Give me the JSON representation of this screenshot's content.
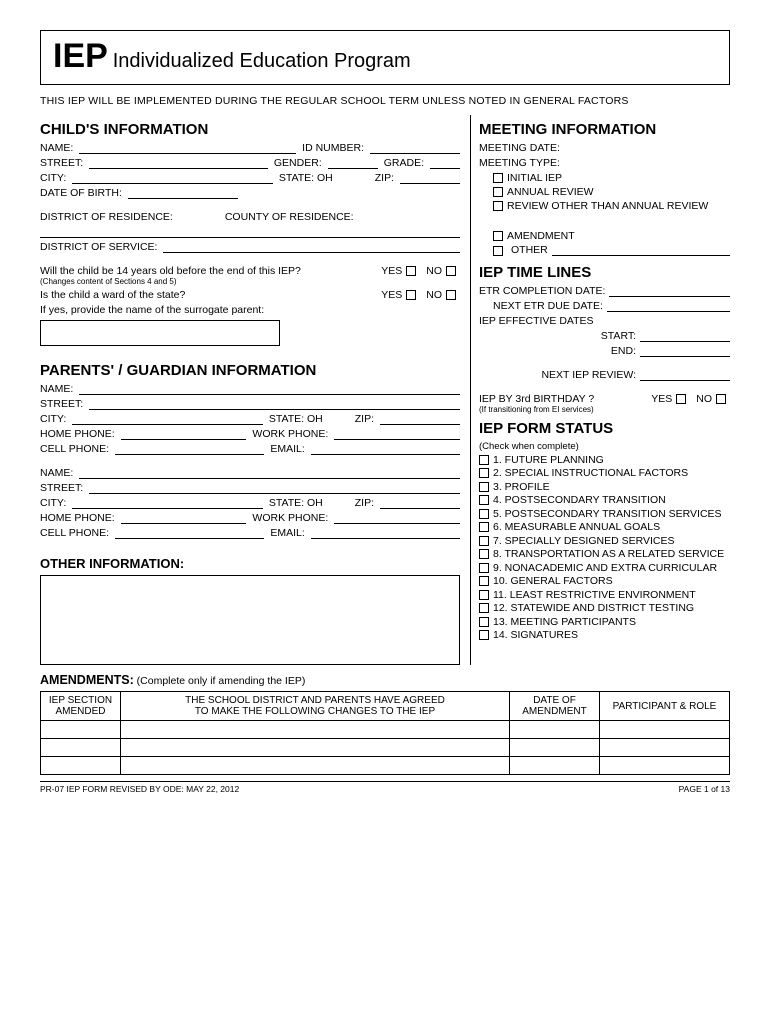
{
  "title": {
    "abbr": "IEP",
    "full": "Individualized Education Program"
  },
  "impl": "THIS IEP WILL BE IMPLEMENTED DURING THE REGULAR SCHOOL TERM UNLESS NOTED IN  GENERAL FACTORS",
  "child": {
    "header": "CHILD'S INFORMATION",
    "name": "NAME:",
    "idnum": "ID NUMBER:",
    "street": "STREET:",
    "gender": "GENDER:",
    "grade": "GRADE:",
    "city": "CITY:",
    "state": "STATE: OH",
    "zip": "ZIP:",
    "dob": "DATE OF BIRTH:",
    "dor": "DISTRICT OF RESIDENCE:",
    "cor": "COUNTY OF RESIDENCE:",
    "dos": "DISTRICT OF SERVICE:",
    "q14": "Will the child be 14 years old before the end of this IEP?",
    "q14sub": "(Changes content of Sections 4 and 5)",
    "ward": "Is the child a ward of the state?",
    "surrogate": "If yes, provide the name of the surrogate parent:",
    "yes": "YES",
    "no": "NO"
  },
  "parent": {
    "header": "PARENTS' / GUARDIAN INFORMATION",
    "name": "NAME:",
    "street": "STREET:",
    "city": "CITY:",
    "state": "STATE: OH",
    "zip": "ZIP:",
    "home": "HOME PHONE:",
    "work": "WORK PHONE:",
    "cell": "CELL PHONE:",
    "email": "EMAIL:"
  },
  "other": {
    "header": "OTHER INFORMATION:"
  },
  "meeting": {
    "header": "MEETING INFORMATION",
    "date": "MEETING DATE:",
    "type": "MEETING TYPE:",
    "opt1": "INITIAL IEP",
    "opt2": "ANNUAL REVIEW",
    "opt3": "REVIEW OTHER THAN ANNUAL REVIEW",
    "opt4": "AMENDMENT",
    "opt5": "OTHER"
  },
  "timelines": {
    "header": "IEP TIME LINES",
    "etr": "ETR COMPLETION DATE:",
    "nextetr": "NEXT ETR DUE DATE:",
    "effdates": "IEP EFFECTIVE DATES",
    "start": "START:",
    "end": "END:",
    "nextrev": "NEXT IEP REVIEW:",
    "by3": "IEP BY 3rd BIRTHDAY ?",
    "by3sub": "(If transitioning from EI services)",
    "yes": "YES",
    "no": "NO"
  },
  "status": {
    "header": "IEP FORM STATUS",
    "sub": "(Check when complete)",
    "items": [
      "1. FUTURE PLANNING",
      "2. SPECIAL INSTRUCTIONAL FACTORS",
      "3. PROFILE",
      "4. POSTSECONDARY TRANSITION",
      "5. POSTSECONDARY TRANSITION SERVICES",
      "6. MEASURABLE ANNUAL GOALS",
      "7. SPECIALLY DESIGNED SERVICES",
      "8. TRANSPORTATION AS A RELATED SERVICE",
      "9. NONACADEMIC AND EXTRA CURRICULAR",
      "10. GENERAL FACTORS",
      "11. LEAST RESTRICTIVE ENVIRONMENT",
      "12. STATEWIDE AND DISTRICT TESTING",
      "13. MEETING PARTICIPANTS",
      "14. SIGNATURES"
    ]
  },
  "amend": {
    "header": "AMENDMENTS:",
    "sub": "(Complete only if amending the IEP)",
    "col1a": "IEP SECTION",
    "col1b": "AMENDED",
    "col2a": "THE SCHOOL DISTRICT AND PARENTS HAVE AGREED",
    "col2b": "TO MAKE THE FOLLOWING CHANGES TO THE IEP",
    "col3a": "DATE OF",
    "col3b": "AMENDMENT",
    "col4": "PARTICIPANT & ROLE"
  },
  "footer": {
    "left": "PR-07 IEP FORM    REVISED BY ODE: MAY 22,  2012",
    "right": "PAGE  1 of 13"
  }
}
